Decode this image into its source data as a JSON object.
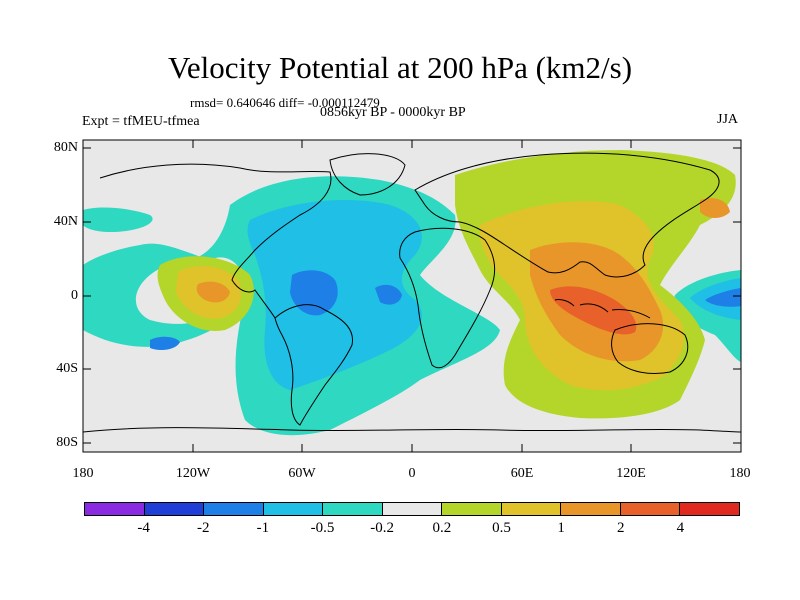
{
  "title": "Velocity Potential at 200 hPa (km2/s)",
  "stats": "rmsd= 0.640646 diff= -0.000112479",
  "experiment": "Expt = tfMEU-tfmea",
  "period": "0856kyr BP - 0000kyr BP",
  "season": "JJA",
  "lat_ticks": [
    "80N",
    "40N",
    "0",
    "40S",
    "80S"
  ],
  "lon_ticks": [
    "180",
    "120W",
    "60W",
    "0",
    "60E",
    "120E",
    "180"
  ],
  "colorbar": {
    "colors": [
      "#8a2be2",
      "#1f3fd6",
      "#1e7fe6",
      "#1fbfe6",
      "#2fd8c0",
      "#e8e8e8",
      "#b4d62a",
      "#e0c22a",
      "#e8962a",
      "#e8602a",
      "#e02a1f"
    ],
    "labels": [
      "-4",
      "-2",
      "-1",
      "-0.5",
      "-0.2",
      "0.2",
      "0.5",
      "1",
      "2",
      "4"
    ]
  },
  "palette": {
    "neutral": "#e8e8e8",
    "neg_weak": "#2fd8c0",
    "neg_mid": "#1fbfe6",
    "neg_strong": "#1e7fe6",
    "pos_weak": "#b4d62a",
    "pos_mid": "#e0c22a",
    "pos_strong": "#e8962a",
    "pos_max": "#e8602a"
  }
}
